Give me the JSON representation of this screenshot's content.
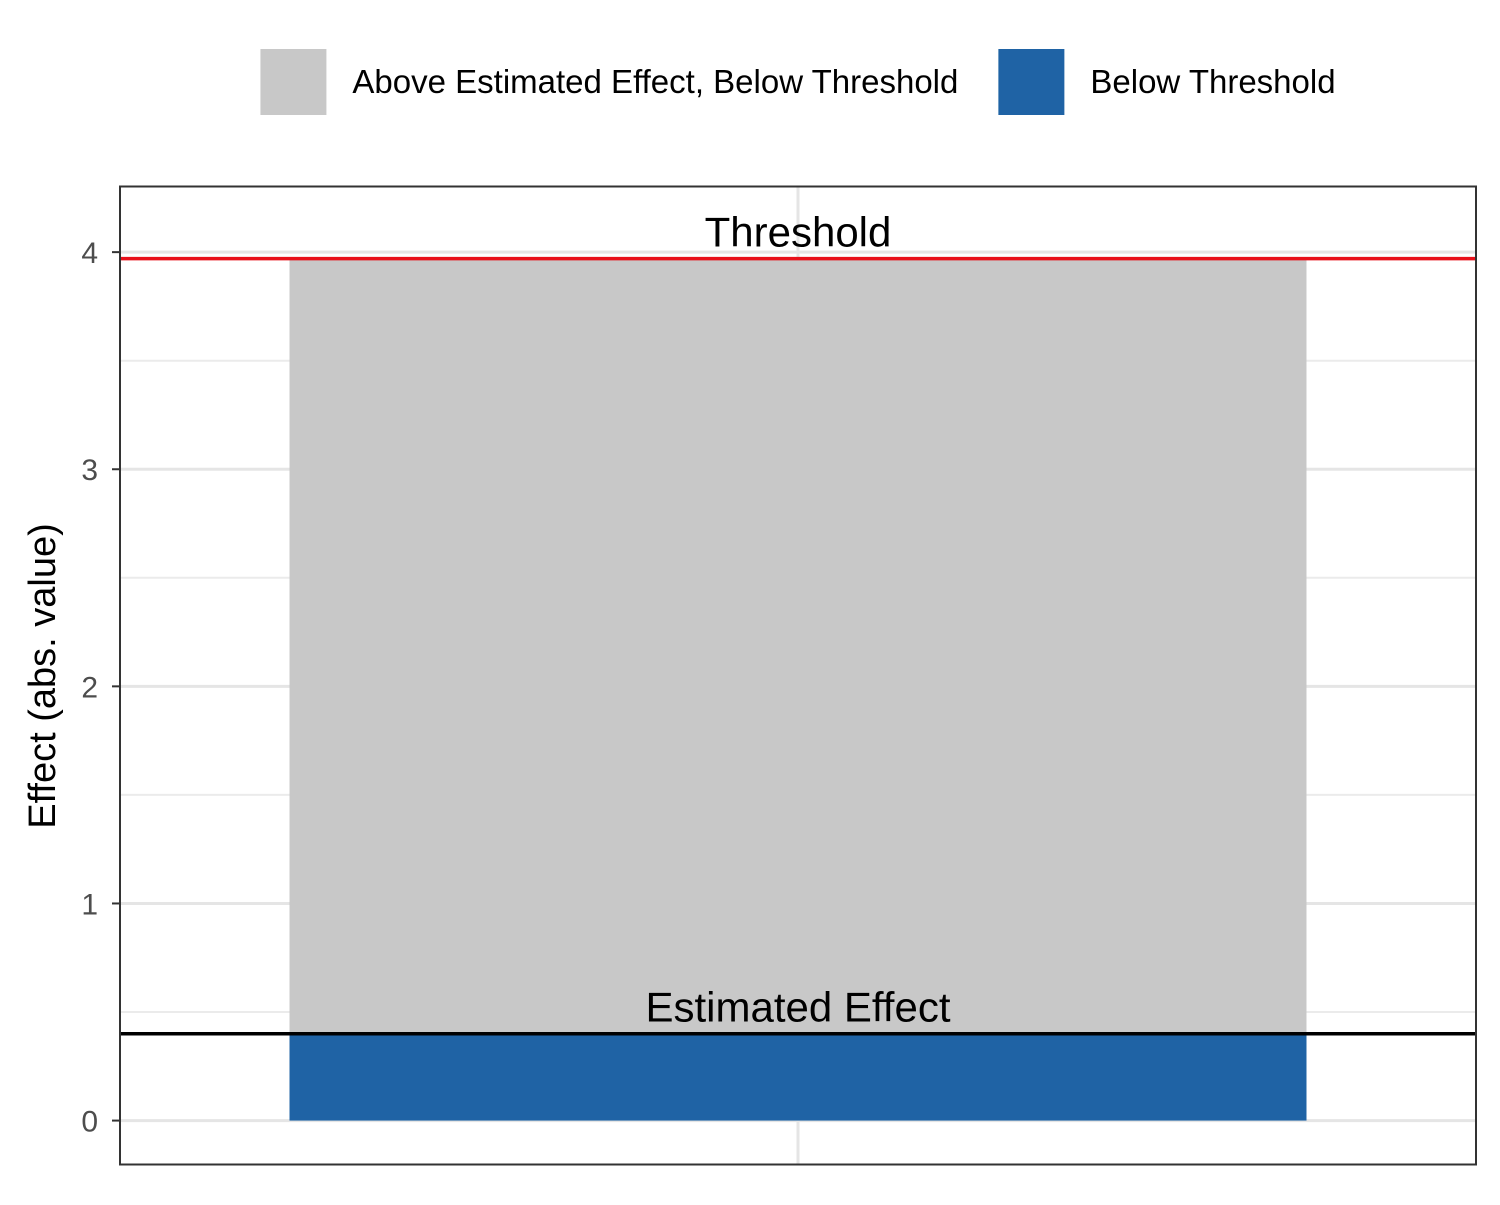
{
  "chart_data": {
    "type": "bar",
    "categories": [
      ""
    ],
    "series": [
      {
        "name": "Below Threshold",
        "values": [
          0.4
        ],
        "color": "#1F63A5"
      },
      {
        "name": "Above Estimated Effect, Below Threshold",
        "values": [
          3.57
        ],
        "color": "#C8C8C8"
      }
    ],
    "stacked": true,
    "ylabel": "Effect (abs. value)",
    "xlabel": "",
    "ylim": [
      -0.2,
      4.3
    ],
    "yticks": [
      0,
      1,
      2,
      3,
      4
    ],
    "legend": {
      "position": "top",
      "items": [
        {
          "label": "Above Estimated Effect, Below Threshold",
          "color": "#C8C8C8"
        },
        {
          "label": "Below Threshold",
          "color": "#1F63A5"
        }
      ]
    },
    "reference_lines": [
      {
        "label": "Threshold",
        "value": 3.97,
        "color": "#E8101A"
      },
      {
        "label": "Estimated Effect",
        "value": 0.4,
        "color": "#000000"
      }
    ],
    "grid": true
  }
}
